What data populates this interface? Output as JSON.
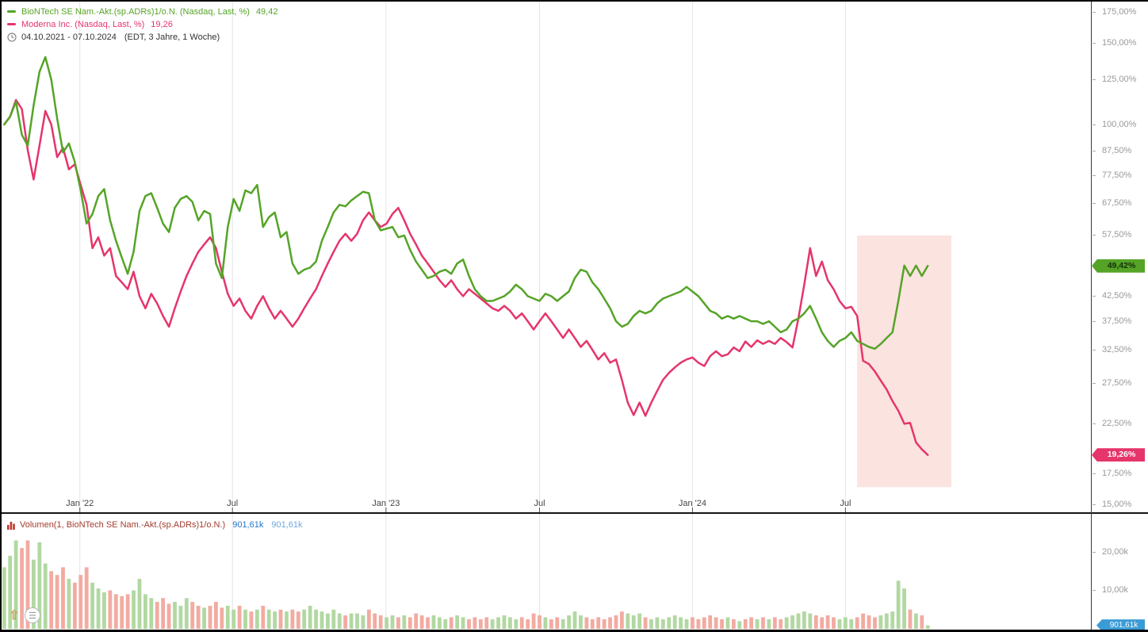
{
  "colors": {
    "biontech": "#55a427",
    "moderna": "#e5356b",
    "badge_green_bg": "#55a427",
    "badge_green_text": "#16300c",
    "badge_pink_bg": "#e5356b",
    "badge_pink_text": "#ffffff",
    "badge_blue_bg": "#3a9bd5",
    "badge_blue_text": "#ffffff",
    "volume_up": "#b2d8a2",
    "volume_down": "#f2aba1",
    "volume_legend_text": "#a33c2e",
    "volume_value_dark": "#2277cc",
    "volume_value_light": "#6fa8dc",
    "highlight": "#fbe3e0",
    "gridline": "#e4e4e4",
    "axis_text": "#999999",
    "x_axis_text": "#444444"
  },
  "header": {
    "series": [
      {
        "label": "BioNTech SE Nam.-Akt.(sp.ADRs)1/o.N. (Nasdaq, Last, %)",
        "value": "49,42"
      },
      {
        "label": "Moderna Inc. (Nasdaq, Last, %)",
        "value": "19,26"
      }
    ],
    "range_label": "04.10.2021 - 07.10.2024",
    "range_detail": "(EDT, 3 Jahre, 1 Woche)"
  },
  "price_axis": {
    "ticks": [
      {
        "label": "175,00%",
        "value": 175
      },
      {
        "label": "150,00%",
        "value": 150
      },
      {
        "label": "125,00%",
        "value": 125
      },
      {
        "label": "100,00%",
        "value": 100
      },
      {
        "label": "87,50%",
        "value": 87.5
      },
      {
        "label": "77,50%",
        "value": 77.5
      },
      {
        "label": "67,50%",
        "value": 67.5
      },
      {
        "label": "57,50%",
        "value": 57.5
      },
      {
        "label": "42,50%",
        "value": 42.5
      },
      {
        "label": "37,50%",
        "value": 37.5
      },
      {
        "label": "32,50%",
        "value": 32.5
      },
      {
        "label": "27,50%",
        "value": 27.5
      },
      {
        "label": "22,50%",
        "value": 22.5
      },
      {
        "label": "17,50%",
        "value": 17.5
      },
      {
        "label": "15,00%",
        "value": 15
      }
    ],
    "biontech_badge": "49,42%",
    "moderna_badge": "19,26%"
  },
  "x_axis": {
    "ticks": [
      {
        "label": "Jan '22",
        "week": 12.86
      },
      {
        "label": "Jul",
        "week": 38.8
      },
      {
        "label": "Jan '23",
        "week": 64.9
      },
      {
        "label": "Jul",
        "week": 91
      },
      {
        "label": "Jan '24",
        "week": 117
      },
      {
        "label": "Jul",
        "week": 143
      }
    ]
  },
  "volume_pane": {
    "legend": {
      "label": "Volumen(1, BioNTech SE Nam.-Akt.(sp.ADRs)1/o.N.)",
      "value1": "901,61k",
      "value2": "901,61k"
    },
    "axis_ticks": [
      {
        "label": "20,00k",
        "value": 20
      },
      {
        "label": "10,00k",
        "value": 10
      }
    ],
    "badge": {
      "text": "901,61k",
      "value": 0.9
    }
  },
  "chart_data": {
    "type": "line",
    "x_unit": "weeks since 04.10.2021",
    "date_range": [
      "04.10.2021",
      "07.10.2024"
    ],
    "interval": "1 Woche",
    "y_scale": "log",
    "y_unit": "%",
    "ylim": [
      14.5,
      182
    ],
    "legend_position": "top-left",
    "grid": "vertical-only",
    "series": [
      {
        "name": "BioNTech SE Nam.-Akt.(sp.ADRs)1/o.N. (Nasdaq, Last, %)",
        "last": 49.42,
        "values": [
          100,
          104,
          112,
          95,
          90,
          110,
          130,
          140,
          125,
          103,
          87,
          91,
          83,
          72,
          61,
          64,
          70,
          72.5,
          62,
          56,
          51.5,
          47.5,
          53,
          65,
          70,
          71,
          66,
          61,
          58.5,
          66,
          69,
          70,
          68,
          62,
          65,
          64,
          50,
          46.5,
          60,
          69,
          65,
          72,
          71,
          74,
          60,
          63,
          64.5,
          57,
          58.5,
          50,
          47.5,
          48.5,
          49,
          50.5,
          56,
          60,
          64.5,
          67,
          66.5,
          68.5,
          70,
          71.5,
          71,
          62,
          59,
          59.5,
          60,
          57,
          57.5,
          53.5,
          50.5,
          48.5,
          46.5,
          47,
          48,
          48.5,
          47.5,
          50,
          51,
          47,
          44,
          42.5,
          41.5,
          41.5,
          42,
          42.5,
          43.5,
          45,
          44,
          42.5,
          42,
          41.5,
          43,
          42.5,
          41.5,
          42.5,
          43.5,
          46.5,
          48.5,
          48,
          45.5,
          44,
          42,
          40,
          37.5,
          36.5,
          37,
          38.5,
          39.5,
          39,
          39.5,
          41,
          42,
          42.5,
          43,
          43.5,
          44.5,
          43.5,
          42.5,
          41,
          39.5,
          39,
          38,
          38.5,
          38,
          38.5,
          38,
          37.5,
          37.5,
          37,
          37.5,
          36.5,
          35.5,
          36,
          37.5,
          38,
          39,
          40.5,
          38,
          35.5,
          34,
          33,
          34,
          34.5,
          35.5,
          34,
          33.5,
          33,
          32.7,
          33.5,
          34.5,
          35.5,
          41.5,
          49.5,
          47,
          49.5,
          47,
          49.42
        ]
      },
      {
        "name": "Moderna Inc. (Nasdaq, Last, %)",
        "last": 19.26,
        "values": [
          100,
          104,
          113,
          108,
          88,
          76,
          90,
          107,
          100,
          85,
          89,
          80,
          82,
          74,
          67,
          54,
          57,
          52,
          54,
          47,
          45.5,
          44,
          48,
          42.5,
          40,
          43,
          41,
          38.5,
          36.5,
          40,
          43.5,
          47,
          50,
          53,
          55,
          57,
          54,
          48,
          43,
          40.5,
          42,
          39.5,
          38,
          40.5,
          42.5,
          40,
          38,
          39.5,
          38,
          36.5,
          38,
          40,
          42,
          44,
          47,
          50,
          53,
          56,
          58,
          56,
          58,
          62,
          64.5,
          62,
          60,
          61,
          64,
          66,
          62,
          58,
          55,
          52,
          50,
          48,
          46,
          44.5,
          46,
          44,
          42.5,
          44,
          43,
          42,
          41,
          40,
          39.5,
          40.5,
          39.5,
          38,
          39,
          37.5,
          36,
          37.5,
          39,
          37.5,
          36,
          34.5,
          36,
          34.5,
          33,
          34,
          32.5,
          31,
          32,
          30.5,
          31,
          28,
          25,
          23.5,
          25,
          23.4,
          25,
          26.5,
          28,
          29,
          29.8,
          30.5,
          31,
          31.3,
          30.5,
          30,
          31.5,
          32.3,
          31.5,
          31.8,
          32.9,
          32.3,
          33.9,
          33,
          34.1,
          33.5,
          34,
          33.5,
          34.5,
          33.8,
          32.9,
          38,
          45,
          54,
          47,
          50.5,
          46,
          44,
          41.5,
          40,
          40.3,
          38.5,
          30.8,
          30.3,
          29.2,
          27.9,
          26.7,
          25.2,
          24,
          22.5,
          22.6,
          20.5,
          19.8,
          19.26
        ]
      }
    ],
    "volume": {
      "name": "Volumen(1, BioNTech SE Nam.-Akt.(sp.ADRs)1/o.N.)",
      "axis_unit": "k",
      "last_label": "901,61k",
      "values": [
        16,
        19,
        23,
        21,
        23,
        18,
        22.5,
        17,
        15,
        14,
        16,
        13,
        12,
        14,
        16,
        12,
        10.5,
        9.5,
        10,
        9,
        8.5,
        9,
        10,
        13,
        9,
        8,
        7,
        8,
        6.5,
        7,
        6,
        8,
        7,
        6,
        5.5,
        6,
        7,
        5.5,
        6,
        5,
        6,
        5,
        4.5,
        5,
        6,
        5,
        4.5,
        5,
        4.5,
        5,
        4.5,
        5,
        6,
        5,
        4.5,
        4,
        5,
        4,
        3.5,
        4,
        4,
        3.5,
        5,
        4,
        3.5,
        3,
        3.5,
        3,
        3.5,
        3,
        4,
        3.5,
        3,
        3.5,
        3,
        2.5,
        3,
        3.5,
        3,
        2.5,
        3,
        2.5,
        3,
        2.5,
        3,
        3.5,
        3,
        2.5,
        3,
        2.5,
        4,
        3.5,
        3,
        2.5,
        3,
        2.5,
        3.5,
        4.5,
        3.5,
        3,
        2.5,
        3,
        2.5,
        3,
        3.5,
        4.5,
        4,
        3.5,
        4,
        3,
        2.5,
        3,
        2.5,
        3,
        3.5,
        3,
        2.5,
        3,
        2.5,
        3,
        3.5,
        3,
        2.5,
        3,
        2.5,
        2,
        2.5,
        3,
        2.5,
        3,
        2.5,
        3,
        2.5,
        3,
        3.5,
        4,
        4.5,
        4,
        3.5,
        3,
        3.5,
        3,
        2.5,
        3,
        2.5,
        3,
        4,
        3.5,
        3,
        3.5,
        4,
        4.5,
        12.5,
        10.5,
        5,
        4,
        3.5,
        0.9
      ]
    },
    "highlight_region": {
      "start_week": 145,
      "end_week": 161,
      "top_pct": 57.5,
      "bottom_pct": 16.4
    }
  }
}
